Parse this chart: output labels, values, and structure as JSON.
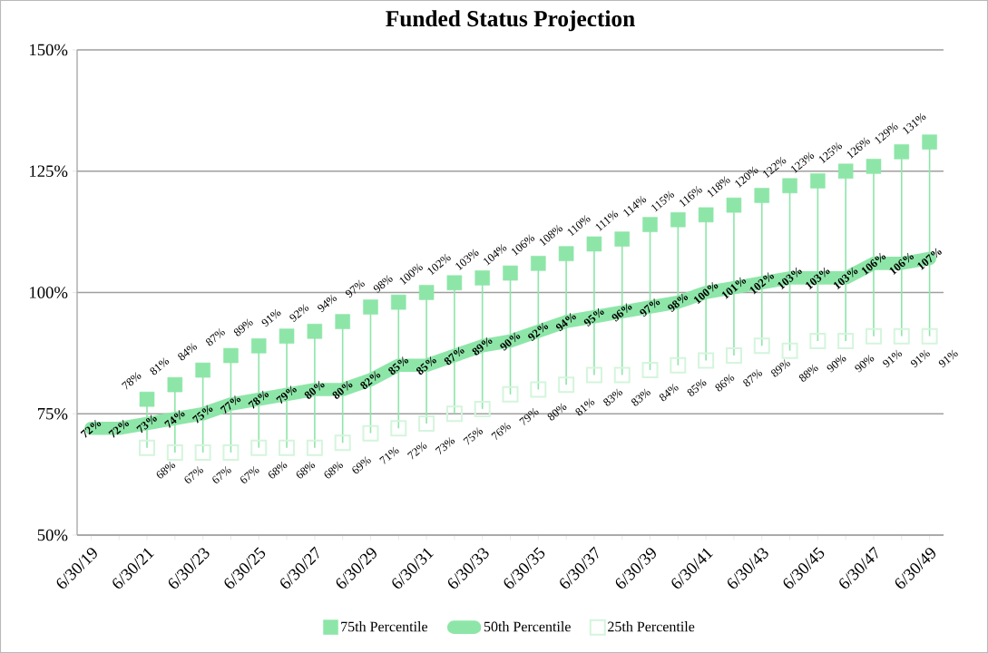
{
  "chart_data": {
    "type": "line",
    "title": "Funded Status Projection",
    "categories": [
      "6/30/19",
      null,
      "6/30/21",
      null,
      "6/30/23",
      null,
      "6/30/25",
      null,
      "6/30/27",
      null,
      "6/30/29",
      null,
      "6/30/31",
      null,
      "6/30/33",
      null,
      "6/30/35",
      null,
      "6/30/37",
      null,
      "6/30/39",
      null,
      "6/30/41",
      null,
      "6/30/43",
      null,
      "6/30/45",
      null,
      "6/30/47",
      null,
      "6/30/49"
    ],
    "series": [
      {
        "name": "75th Percentile",
        "type": "scatter",
        "marker": "square",
        "color": "#8de6a8",
        "values": [
          null,
          null,
          78,
          81,
          84,
          87,
          89,
          91,
          92,
          94,
          97,
          98,
          100,
          102,
          103,
          104,
          106,
          108,
          110,
          111,
          114,
          115,
          116,
          118,
          120,
          122,
          123,
          125,
          126,
          129,
          131
        ],
        "value_labels": [
          null,
          null,
          "78%",
          "81%",
          "84%",
          "87%",
          "89%",
          "91%",
          "92%",
          "94%",
          "97%",
          "98%",
          "100%",
          "102%",
          "103%",
          "104%",
          "106%",
          "108%",
          "110%",
          "111%",
          "114%",
          "115%",
          "116%",
          "118%",
          "120%",
          "122%",
          "123%",
          "125%",
          "126%",
          "129%",
          "131%"
        ]
      },
      {
        "name": "50th Percentile",
        "marker": "none",
        "color": "#8de6a8",
        "values": [
          72,
          72,
          73,
          74,
          75,
          77,
          78,
          79,
          80,
          80,
          82,
          85,
          85,
          87,
          89,
          90,
          92,
          94,
          95,
          96,
          97,
          98,
          100,
          101,
          102,
          103,
          103,
          103,
          106,
          106,
          107
        ],
        "value_labels": [
          "72%",
          "72%",
          "73%",
          "74%",
          "75%",
          "77%",
          "78%",
          "79%",
          "80%",
          "80%",
          "82%",
          "85%",
          "85%",
          "87%",
          "89%",
          "90%",
          "92%",
          "94%",
          "95%",
          "96%",
          "97%",
          "98%",
          "100%",
          "101%",
          "102%",
          "103%",
          "103%",
          "103%",
          "106%",
          "106%",
          "107%"
        ]
      },
      {
        "name": "25th Percentile",
        "type": "scatter",
        "marker": "square",
        "color": "#d4f5dc",
        "values": [
          null,
          null,
          68,
          67,
          67,
          67,
          68,
          68,
          68,
          69,
          71,
          72,
          73,
          75,
          76,
          79,
          80,
          81,
          83,
          83,
          84,
          85,
          86,
          87,
          89,
          88,
          90,
          90,
          91,
          91,
          91
        ],
        "value_labels": [
          null,
          null,
          "68%",
          "67%",
          "67%",
          "67%",
          "68%",
          "68%",
          "68%",
          "69%",
          "71%",
          "72%",
          "73%",
          "75%",
          "76%",
          "79%",
          "80%",
          "81%",
          "83%",
          "83%",
          "84%",
          "85%",
          "86%",
          "87%",
          "89%",
          "88%",
          "90%",
          "90%",
          "91%",
          "91%",
          "91%"
        ]
      }
    ],
    "ylim": [
      50,
      150
    ],
    "yticks": [
      {
        "value": 50,
        "label": "50%"
      },
      {
        "value": 75,
        "label": "75%"
      },
      {
        "value": 100,
        "label": "100%"
      },
      {
        "value": 125,
        "label": "125%"
      },
      {
        "value": 150,
        "label": "150%"
      }
    ],
    "grid": "y",
    "legend": "bottom"
  }
}
